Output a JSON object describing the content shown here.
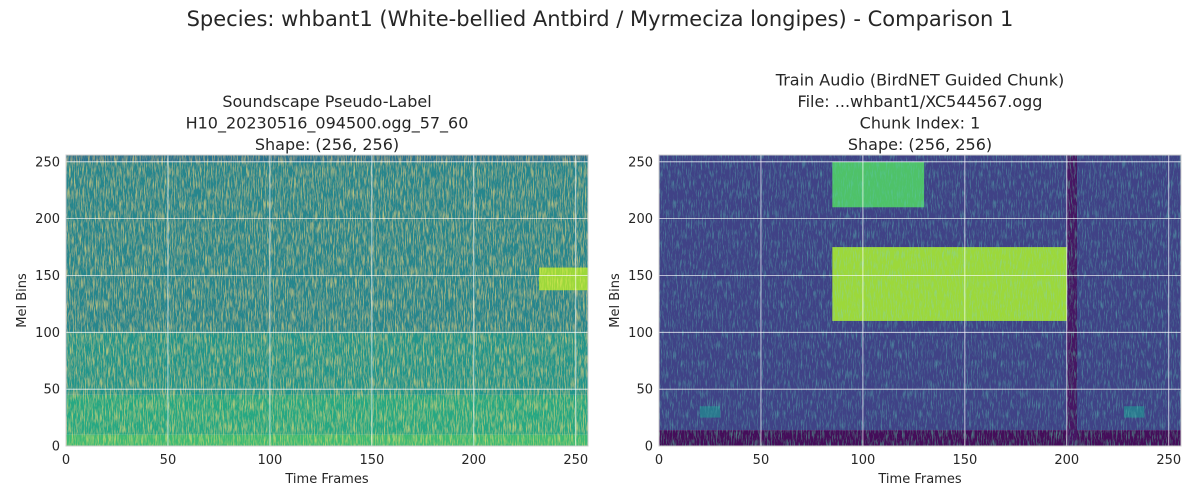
{
  "suptitle": "Species: whbant1 (White-bellied Antbird / Myrmeciza longipes) - Comparison 1",
  "chart_data": [
    {
      "type": "heatmap",
      "title_lines": [
        "Soundscape Pseudo-Label",
        "H10_20230516_094500.ogg_57_60",
        "Shape: (256, 256)"
      ],
      "xlabel": "Time Frames",
      "ylabel": "Mel Bins",
      "xlim": [
        0,
        256
      ],
      "ylim": [
        0,
        256
      ],
      "xticks": [
        0,
        50,
        100,
        150,
        200,
        250
      ],
      "yticks": [
        0,
        50,
        100,
        150,
        200,
        250
      ],
      "grid": true,
      "colormap": "viridis",
      "shape": [
        256,
        256
      ],
      "regions": [
        {
          "t": [
            0,
            256
          ],
          "mel": [
            0,
            10
          ],
          "intensity": 0.68
        },
        {
          "t": [
            0,
            256
          ],
          "mel": [
            10,
            45
          ],
          "intensity": 0.6
        },
        {
          "t": [
            0,
            256
          ],
          "mel": [
            45,
            100
          ],
          "intensity": 0.52
        },
        {
          "t": [
            0,
            256
          ],
          "mel": [
            100,
            250
          ],
          "intensity": 0.46
        },
        {
          "t": [
            0,
            256
          ],
          "mel": [
            250,
            256
          ],
          "intensity": 0.38
        },
        {
          "t": [
            232,
            256
          ],
          "mel": [
            137,
            157
          ],
          "intensity": 0.85
        }
      ]
    },
    {
      "type": "heatmap",
      "title_lines": [
        "Train Audio (BirdNET Guided Chunk)",
        "File: ...whbant1/XC544567.ogg",
        "Chunk Index: 1",
        "Shape: (256, 256)"
      ],
      "xlabel": "Time Frames",
      "ylabel": "Mel Bins",
      "xlim": [
        0,
        256
      ],
      "ylim": [
        0,
        256
      ],
      "xticks": [
        0,
        50,
        100,
        150,
        200,
        250
      ],
      "yticks": [
        0,
        50,
        100,
        150,
        200,
        250
      ],
      "grid": true,
      "colormap": "viridis",
      "shape": [
        256,
        256
      ],
      "regions": [
        {
          "t": [
            0,
            256
          ],
          "mel": [
            0,
            14
          ],
          "intensity": 0.02
        },
        {
          "t": [
            0,
            256
          ],
          "mel": [
            14,
            256
          ],
          "intensity": 0.2
        },
        {
          "t": [
            85,
            200
          ],
          "mel": [
            110,
            175
          ],
          "intensity": 0.85
        },
        {
          "t": [
            85,
            130
          ],
          "mel": [
            210,
            250
          ],
          "intensity": 0.72
        },
        {
          "t": [
            200,
            205
          ],
          "mel": [
            0,
            256
          ],
          "intensity": 0.05
        },
        {
          "t": [
            20,
            30
          ],
          "mel": [
            25,
            35
          ],
          "intensity": 0.4
        },
        {
          "t": [
            228,
            238
          ],
          "mel": [
            25,
            35
          ],
          "intensity": 0.4
        }
      ]
    }
  ]
}
